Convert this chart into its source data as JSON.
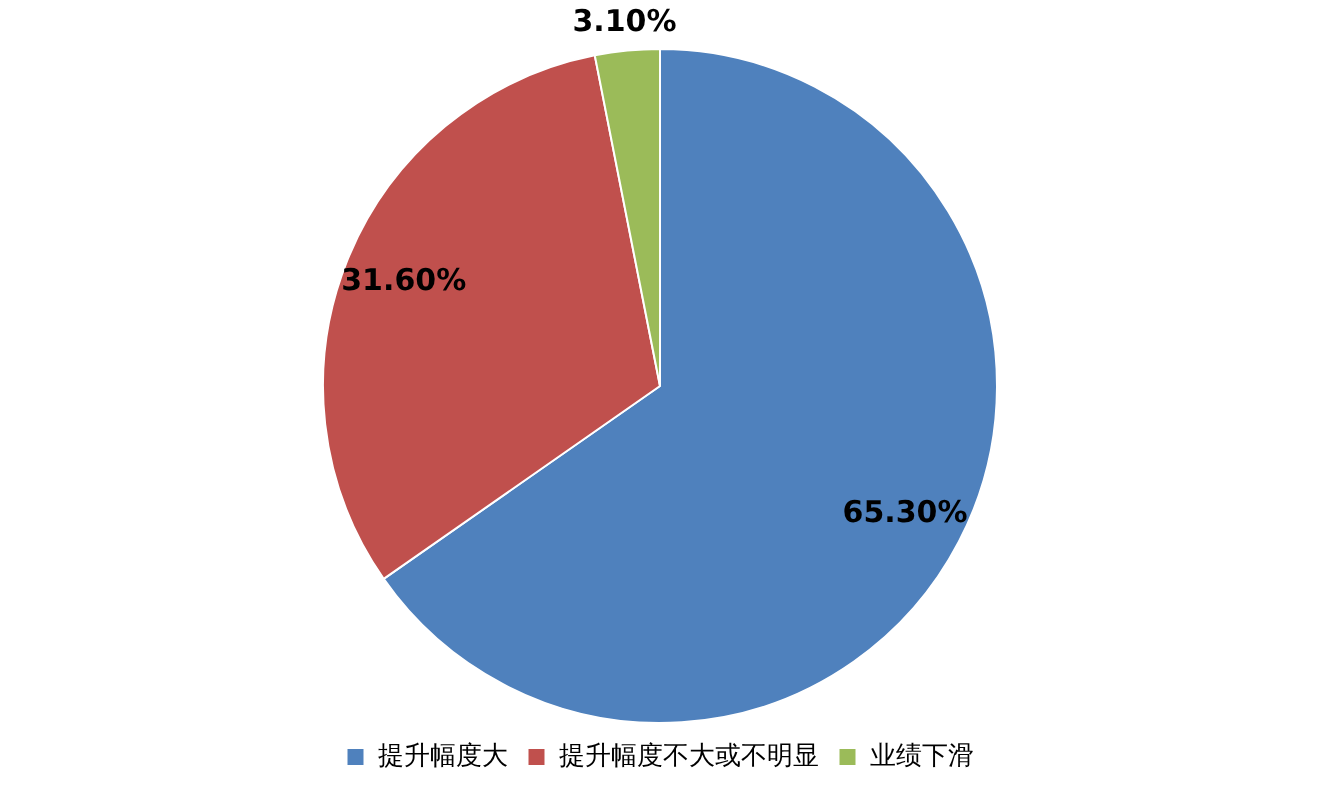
{
  "chart_data": {
    "type": "pie",
    "categories": [
      "提升幅度大",
      "提升幅度不大或不明显",
      "业绩下滑"
    ],
    "values": [
      65.3,
      31.6,
      3.1
    ],
    "colors": [
      "#4f81bd",
      "#c0504d",
      "#9bbb59"
    ],
    "value_labels": [
      "65.30%",
      "31.60%",
      "3.10%"
    ],
    "legend": "bottom"
  }
}
